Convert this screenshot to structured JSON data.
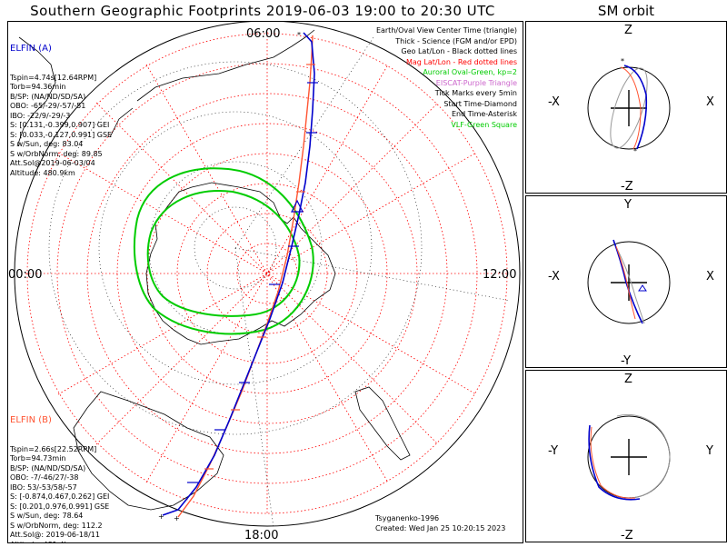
{
  "title": "Southern Geographic Footprints 2019-06-03 19:00 to 20:30 UTC",
  "sm_title": "SM orbit",
  "clock_labels": {
    "top": "06:00",
    "left": "00:00",
    "right": "12:00",
    "bottom": "18:00"
  },
  "legend": [
    {
      "text": "Earth/Oval View Center Time (triangle)",
      "color": "#000000"
    },
    {
      "text": "Thick - Science (FGM and/or EPD)",
      "color": "#000000"
    },
    {
      "text": "Geo Lat/Lon - Black dotted lines",
      "color": "#000000"
    },
    {
      "text": "Mag Lat/Lon - Red dotted lines",
      "color": "#ff0000"
    },
    {
      "text": "Auroral Oval-Green, kp=2",
      "color": "#00cc00"
    },
    {
      "text": "EISCAT-Purple Triangle",
      "color": "#cc66cc"
    },
    {
      "text": "Tick Marks every 5min",
      "color": "#000000"
    },
    {
      "text": "Start Time-Diamond",
      "color": "#000000"
    },
    {
      "text": "End Time-Asterisk",
      "color": "#000000"
    },
    {
      "text": "VLF-Green Square",
      "color": "#00cc00"
    }
  ],
  "elfin_a": {
    "name": "ELFIN (A)",
    "color": "#0000cc",
    "lines": [
      "Tspin=4.74s[12.64RPM]",
      "Torb=94.36min",
      "B/SP: (NA/ND/SD/SA)",
      "OBO: -65/-29/-57/-51",
      "IBO: -22/9/-29/-3",
      "S: [0.131,-0.399,0.907] GEI",
      "S: [0.033,-0.127,0.991] GSE",
      "S w/Sun, deg: 83.04",
      "S w/OrbNorm, deg: 89.85",
      "Att.Sol@2019-06-03/04",
      "Altitude: 480.9km"
    ]
  },
  "elfin_b": {
    "name": "ELFIN (B)",
    "color": "#ff5533",
    "lines": [
      "Tspin=2.66s[22.52RPM]",
      "Torb=94.73min",
      "B/SP: (NA/ND/SD/SA)",
      "OBO: -7/-46/27/-38",
      "IBO: 53/-53/58/-57",
      "S: [-0.874,0.467,0.262] GEI",
      "S: [0.201,0.976,0.991] GSE",
      "S w/Sun, deg: 78.64",
      "S w/OrbNorm, deg: 112.2",
      "Att.Sol@: 2019-06-18/11",
      "Altitude: 481.4km"
    ]
  },
  "credit": {
    "author": "Tsyganenko-1996",
    "created": "Created: Wed Jan 25 10:20:15 2023"
  },
  "sm_panels": [
    {
      "top": "Z",
      "bottom": "-Z",
      "left": "-X",
      "right": "X"
    },
    {
      "top": "Y",
      "bottom": "-Y",
      "left": "-X",
      "right": "X"
    },
    {
      "top": "Z",
      "bottom": "-Z",
      "left": "-Y",
      "right": "Y"
    }
  ],
  "colors": {
    "elfin_a": "#0000cc",
    "elfin_b": "#ff5533",
    "auroral_oval": "#00cc00",
    "mag_grid": "#ff0000",
    "geo_grid": "#000000"
  }
}
